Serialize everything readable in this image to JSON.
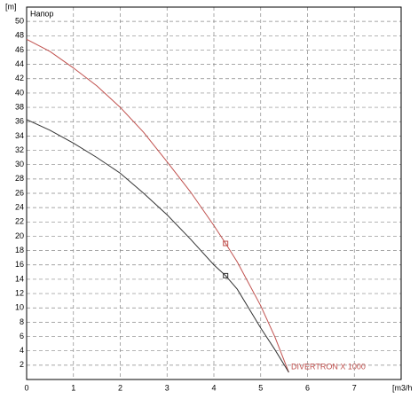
{
  "chart_data": {
    "type": "line",
    "y_label": "[m]",
    "x_label": "[m3/h",
    "inner_label": "Напор",
    "annotation": "DIVERTRON X 1000",
    "xlim": [
      0,
      8
    ],
    "xticks": [
      0,
      1,
      2,
      3,
      4,
      5,
      6,
      7
    ],
    "ylim": [
      0,
      52
    ],
    "yticks": [
      2,
      4,
      6,
      8,
      10,
      12,
      14,
      16,
      18,
      20,
      22,
      24,
      26,
      28,
      30,
      32,
      34,
      36,
      38,
      40,
      42,
      44,
      46,
      48,
      50
    ],
    "grid": true,
    "series": [
      {
        "color": "#c0504d",
        "x": [
          0,
          0.5,
          1,
          1.5,
          2,
          2.5,
          3,
          3.5,
          4,
          4.25,
          4.5,
          5,
          5.3,
          5.6
        ],
        "values": [
          47.5,
          45.8,
          43.5,
          41,
          38,
          34.5,
          30.4,
          26.2,
          21.5,
          19,
          16.4,
          10.3,
          6,
          1
        ]
      },
      {
        "color": "#333333",
        "x": [
          0,
          0.5,
          1,
          1.5,
          2,
          2.5,
          3,
          3.5,
          4,
          4.25,
          4.5,
          5,
          5.3,
          5.6
        ],
        "values": [
          36.3,
          34.8,
          33,
          31,
          28.8,
          26,
          23,
          19.6,
          16,
          14.5,
          12.6,
          7.2,
          4.2,
          1
        ]
      }
    ],
    "operating_points": [
      {
        "x": 4.25,
        "y": 19,
        "color": "#c0504d"
      },
      {
        "x": 4.25,
        "y": 14.5,
        "color": "#333333"
      }
    ]
  }
}
